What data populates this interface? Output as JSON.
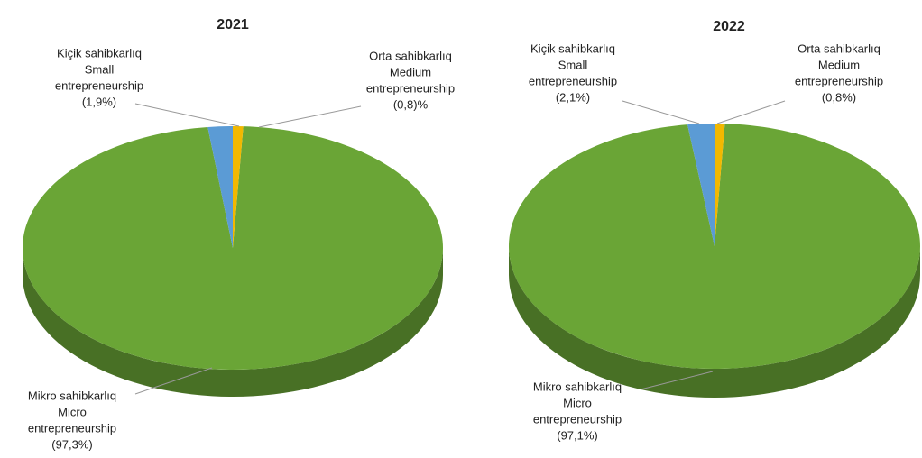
{
  "chart_data": [
    {
      "type": "pie",
      "title": "2021",
      "categories": [
        [
          "Mikro sahibkarlıq",
          "Micro",
          "entrepreneurship"
        ],
        [
          "Kiçik sahibkarlıq",
          "Small",
          "entrepreneurship"
        ],
        [
          "Orta sahibkarlıq",
          "Medium",
          "entrepreneurship"
        ]
      ],
      "values": [
        97.3,
        1.9,
        0.8
      ],
      "value_labels": [
        "(97,3%)",
        "(1,9%)",
        "(0,8)%"
      ],
      "colors": [
        "#6aa536",
        "#5b9bd5",
        "#f2b800"
      ]
    },
    {
      "type": "pie",
      "title": "2022",
      "categories": [
        [
          "Mikro sahibkarlıq",
          "Micro",
          "entrepreneurship"
        ],
        [
          "Kiçik sahibkarlıq",
          "Small",
          "entrepreneurship"
        ],
        [
          "Orta sahibkarlıq",
          "Medium",
          "entrepreneurship"
        ]
      ],
      "values": [
        97.1,
        2.1,
        0.8
      ],
      "value_labels": [
        "(97,1%)",
        "(2,1%)",
        "(0,8%)"
      ],
      "colors": [
        "#6aa536",
        "#5b9bd5",
        "#f2b800"
      ]
    }
  ]
}
